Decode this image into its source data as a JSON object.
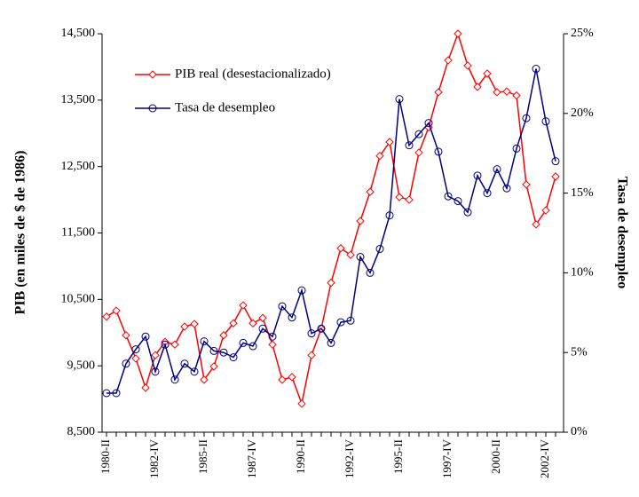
{
  "chart_data": {
    "type": "line",
    "categories": [
      "1980-II",
      null,
      null,
      null,
      null,
      "1982-IV",
      null,
      null,
      null,
      null,
      "1985-II",
      null,
      null,
      null,
      null,
      "1987-IV",
      null,
      null,
      null,
      null,
      "1990-II",
      null,
      null,
      null,
      null,
      "1992-IV",
      null,
      null,
      null,
      null,
      "1995-II",
      null,
      null,
      null,
      null,
      "1997-IV",
      null,
      null,
      null,
      null,
      "2000-II",
      null,
      null,
      null,
      null,
      "2002-IV",
      null
    ],
    "y_label": "PIB (en miles de $ de 1986)",
    "y2_label": "Tasa de desempleo",
    "ylim": [
      8500,
      14500
    ],
    "yticks": [
      {
        "value": 8500,
        "label": "8,500"
      },
      {
        "value": 9500,
        "label": "9,500"
      },
      {
        "value": 10500,
        "label": "10,500"
      },
      {
        "value": 11500,
        "label": "11,500"
      },
      {
        "value": 12500,
        "label": "12,500"
      },
      {
        "value": 13500,
        "label": "13,500"
      },
      {
        "value": 14500,
        "label": "14,500"
      }
    ],
    "y2lim": [
      0,
      25
    ],
    "y2ticks": [
      {
        "value": 0,
        "label": "0%"
      },
      {
        "value": 5,
        "label": "5%"
      },
      {
        "value": 10,
        "label": "10%"
      },
      {
        "value": 15,
        "label": "15%"
      },
      {
        "value": 20,
        "label": "20%"
      },
      {
        "value": 25,
        "label": "25%"
      }
    ],
    "series": [
      {
        "name": "PIB real (desestacionalizado)",
        "color": "#ff0000",
        "marker": "diamond",
        "values": [
          10240,
          10330,
          9960,
          9610,
          9170,
          9660,
          9860,
          9820,
          10090,
          10130,
          9290,
          9490,
          9960,
          10140,
          10410,
          10140,
          10220,
          9820,
          9290,
          9330,
          8930,
          9660,
          10060,
          10750,
          11270,
          11170,
          11680,
          12120,
          12660,
          12870,
          12040,
          12000,
          12710,
          13090,
          13620,
          14100,
          14500,
          14020,
          13700,
          13900,
          13620,
          13630,
          13570,
          12230,
          11630,
          11840,
          12350
        ]
      },
      {
        "name": "Tasa de desempleo",
        "color": "#000080",
        "marker": "circle",
        "axis": "y2",
        "values": [
          2.45,
          2.45,
          4.3,
          5.2,
          6.0,
          3.8,
          5.5,
          3.3,
          4.3,
          3.8,
          5.7,
          5.1,
          5.0,
          4.7,
          5.6,
          5.4,
          6.5,
          6.0,
          7.9,
          7.2,
          8.9,
          6.2,
          6.5,
          5.6,
          6.9,
          7.0,
          11.0,
          10.0,
          11.5,
          13.6,
          20.9,
          18.0,
          18.7,
          19.4,
          17.6,
          14.8,
          14.5,
          13.8,
          16.1,
          15.0,
          16.5,
          15.3,
          17.8,
          19.7,
          22.8,
          19.5,
          17.0
        ]
      }
    ]
  }
}
